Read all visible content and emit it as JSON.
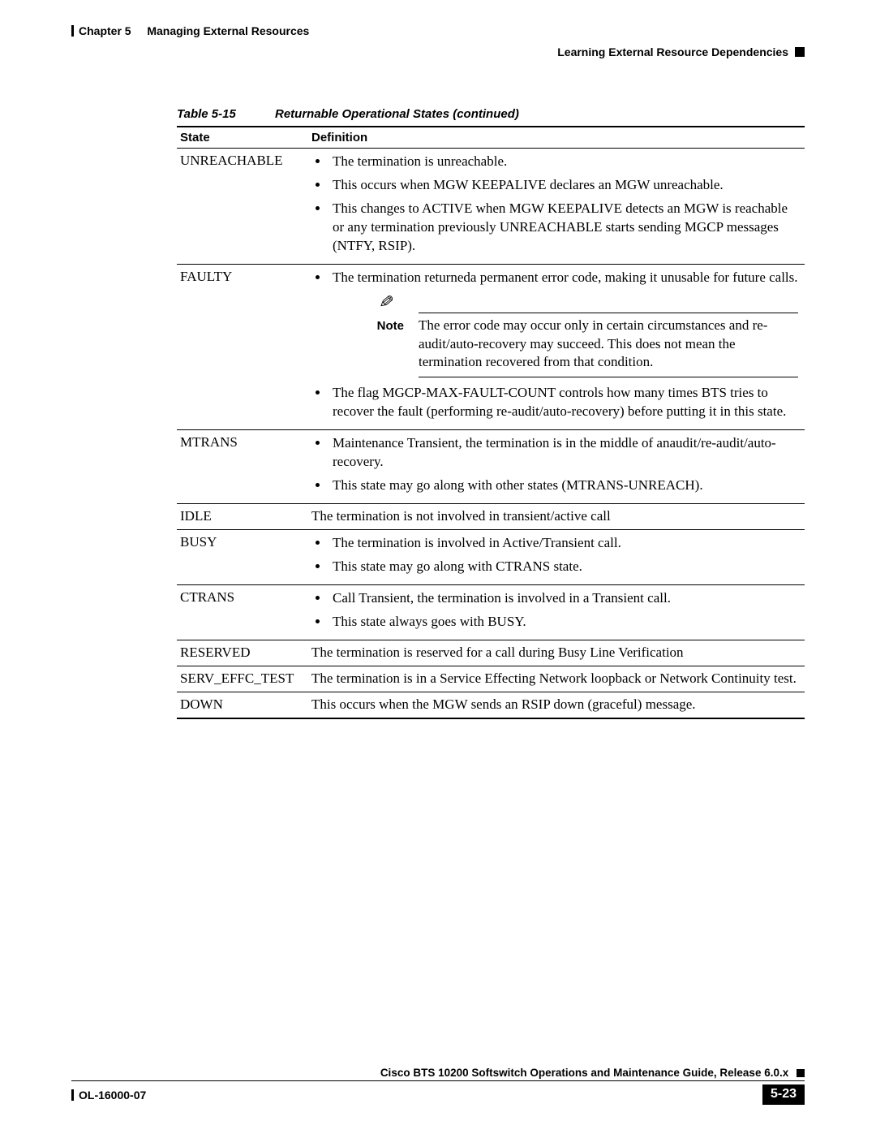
{
  "header": {
    "chapter_label": "Chapter 5",
    "chapter_title": "Managing External Resources",
    "section_title": "Learning External Resource Dependencies"
  },
  "table": {
    "caption_label": "Table 5-15",
    "caption_title": "Returnable Operational States (continued)",
    "columns": {
      "state": "State",
      "definition": "Definition"
    },
    "rows": [
      {
        "state": "UNREACHABLE",
        "bullets": [
          "The termination is unreachable.",
          "This occurs when MGW KEEPALIVE declares an MGW unreachable.",
          "This changes to ACTIVE when MGW KEEPALIVE detects an MGW is reachable or any termination previously UNREACHABLE starts sending MGCP messages (NTFY, RSIP)."
        ]
      },
      {
        "state": "FAULTY",
        "bullets_pre": [
          "The termination returneda permanent error code, making it unusable for future calls."
        ],
        "note": {
          "label": "Note",
          "text": "The error code may occur only in certain circumstances and re-audit/auto-recovery may succeed. This does not mean the termination recovered from that condition."
        },
        "bullets_post": [
          "The flag MGCP-MAX-FAULT-COUNT controls how many times BTS tries to recover the fault (performing re-audit/auto-recovery) before putting it in this state."
        ]
      },
      {
        "state": "MTRANS",
        "bullets": [
          "Maintenance Transient, the termination is in the middle of anaudit/re-audit/auto-recovery.",
          "This state may go along with other states (MTRANS-UNREACH)."
        ]
      },
      {
        "state": "IDLE",
        "text": "The termination is not involved in transient/active call"
      },
      {
        "state": "BUSY",
        "bullets": [
          "The termination is involved in Active/Transient call.",
          "This state may go along with CTRANS state."
        ]
      },
      {
        "state": "CTRANS",
        "bullets": [
          "Call Transient, the termination is involved in a Transient call.",
          "This state always goes with BUSY."
        ]
      },
      {
        "state": "RESERVED",
        "text": "The termination is reserved for a call during Busy Line Verification"
      },
      {
        "state": "SERV_EFFC_TEST",
        "text": "The termination is in a Service Effecting Network loopback or Network Continuity test."
      },
      {
        "state": "DOWN",
        "text": "This occurs when the MGW sends an RSIP down (graceful) message."
      }
    ]
  },
  "footer": {
    "guide_title": "Cisco BTS 10200 Softswitch Operations and Maintenance Guide, Release 6.0.x",
    "doc_id": "OL-16000-07",
    "page_number": "5-23"
  }
}
